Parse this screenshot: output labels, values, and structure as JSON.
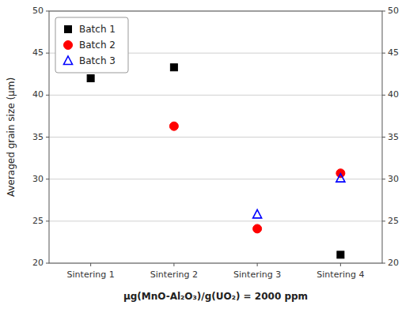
{
  "chart_data": {
    "type": "scatter",
    "categories": [
      "Sintering 1",
      "Sintering 2",
      "Sintering 3",
      "Sintering 4"
    ],
    "series": [
      {
        "name": "Batch 1",
        "color": "black",
        "marker": "square",
        "values": [
          42.0,
          43.3,
          null,
          21.0
        ]
      },
      {
        "name": "Batch 2",
        "color": "red",
        "marker": "circle",
        "values": [
          null,
          36.3,
          24.1,
          30.7
        ]
      },
      {
        "name": "Batch 3",
        "color": "blue",
        "marker": "open-triangle",
        "values": [
          null,
          null,
          25.8,
          30.1
        ]
      }
    ],
    "xlabel": "μg(MnO-Al₂O₃)/g(UO₂) = 2000 ppm",
    "ylabel": "Averaged grain size (μm)",
    "ylim": [
      20,
      50
    ],
    "yticks": [
      20,
      25,
      30,
      35,
      40,
      45,
      50
    ],
    "y2lim": [
      20,
      50
    ],
    "y2ticks": [
      20,
      25,
      30,
      35,
      40,
      45,
      50
    ],
    "grid": true,
    "legend": "upper left"
  }
}
